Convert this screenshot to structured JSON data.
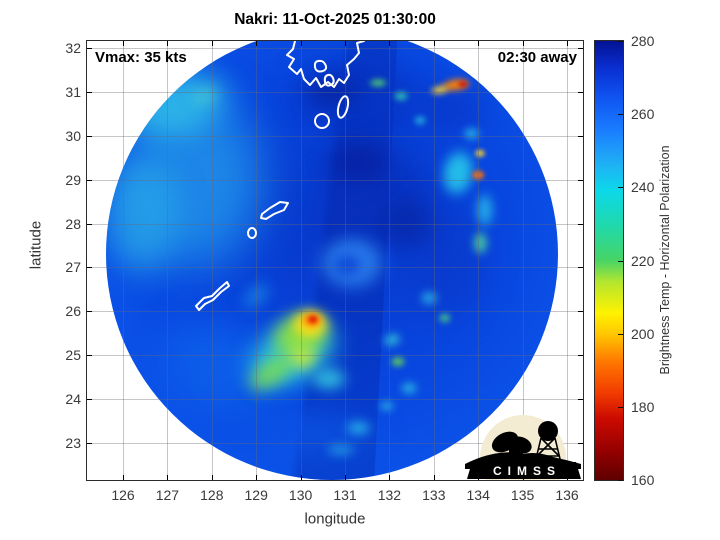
{
  "chart_data": {
    "type": "heatmap",
    "title": "Nakri: 11-Oct-2025 01:30:00",
    "xlabel": "longitude",
    "ylabel": "latitude",
    "xlim": [
      125.2,
      136.4
    ],
    "ylim": [
      22.1,
      32.2
    ],
    "xticks": [
      126,
      127,
      128,
      129,
      130,
      131,
      132,
      133,
      134,
      135,
      136
    ],
    "yticks": [
      23,
      24,
      25,
      26,
      27,
      28,
      29,
      30,
      31,
      32
    ],
    "grid": true,
    "annotations": [
      {
        "text": "Vmax: 35 kts",
        "position": "top-left"
      },
      {
        "text": "02:30 away",
        "position": "top-right"
      }
    ],
    "storm": {
      "name": "Nakri",
      "vmax_kts": 35,
      "time_away": "02:30"
    },
    "colorbar": {
      "label": "Brightness Temp - Horizontal Polarization",
      "min": 160,
      "max": 280,
      "ticks": [
        160,
        180,
        200,
        220,
        240,
        260,
        280
      ],
      "stops": [
        [
          0,
          "#5f0000"
        ],
        [
          0.06,
          "#900000"
        ],
        [
          0.14,
          "#cc0a00"
        ],
        [
          0.2,
          "#f23d00"
        ],
        [
          0.27,
          "#ff7800"
        ],
        [
          0.33,
          "#ffc400"
        ],
        [
          0.38,
          "#fff200"
        ],
        [
          0.45,
          "#b5e62e"
        ],
        [
          0.5,
          "#47d465"
        ],
        [
          0.58,
          "#1fd9ac"
        ],
        [
          0.66,
          "#0cd8ea"
        ],
        [
          0.72,
          "#1fb0f5"
        ],
        [
          0.8,
          "#1a7bff"
        ],
        [
          0.875,
          "#0f52f0"
        ],
        [
          0.94,
          "#0a2ed0"
        ],
        [
          1,
          "#041294"
        ]
      ]
    },
    "swath": {
      "center_lon": 130.7,
      "center_lat": 27.3,
      "radius_deg": 5.1,
      "base_color": "#0846df"
    },
    "features_format": [
      "name",
      "lon",
      "lat",
      "rx_deg",
      "ry_deg",
      "rot_deg",
      "color",
      "alpha",
      "blur_px"
    ],
    "features": [
      [
        "west-light",
        127.6,
        29.0,
        2.6,
        3.4,
        0,
        "#1f8ae8",
        0.95,
        18
      ],
      [
        "nw-cyan",
        127.2,
        30.7,
        1.9,
        1.2,
        -15,
        "#2fb9e8",
        0.9,
        12
      ],
      [
        "west-cyan",
        126.4,
        28.2,
        1.4,
        2.2,
        0,
        "#2aaae8",
        0.75,
        14
      ],
      [
        "sw-blue",
        128.2,
        24.7,
        2.3,
        1.7,
        20,
        "#0e60ea",
        0.85,
        16
      ],
      [
        "south-blue",
        130.2,
        23.2,
        2.4,
        0.9,
        0,
        "#0d55e6",
        0.7,
        14
      ],
      [
        "upper-dark",
        131.3,
        30.9,
        2.3,
        1.5,
        0,
        "#0733c2",
        0.8,
        14
      ],
      [
        "mid-dark",
        131.8,
        28.7,
        1.9,
        1.7,
        0,
        "#0830bd",
        0.75,
        14
      ],
      [
        "east-dark",
        133.3,
        27.2,
        1.5,
        2.3,
        0,
        "#0a38ca",
        0.65,
        14
      ],
      [
        "ne-dark",
        133.4,
        30.6,
        1.3,
        0.9,
        0,
        "#0a34c4",
        0.6,
        12
      ],
      [
        "navy-1",
        131.3,
        29.4,
        1.1,
        0.75,
        0,
        "#061d9c",
        0.7,
        10
      ],
      [
        "navy-2",
        132.4,
        28.0,
        0.95,
        0.95,
        0,
        "#07239e",
        0.6,
        10
      ],
      [
        "navy-3",
        130.7,
        31.0,
        1.0,
        0.55,
        0,
        "#07219a",
        0.65,
        9
      ],
      [
        "eye-swirl-light",
        131.15,
        27.1,
        1.15,
        0.95,
        0,
        "#2e86f2",
        0.85,
        7
      ],
      [
        "eye-swirl-core",
        131.05,
        27.05,
        0.5,
        0.4,
        0,
        "#0d47d6",
        0.9,
        5
      ],
      [
        "burst-cyan",
        129.8,
        25.0,
        1.7,
        1.05,
        -25,
        "#2fd0da",
        0.9,
        10
      ],
      [
        "burst-green",
        130.0,
        25.45,
        1.05,
        0.8,
        -20,
        "#90e23c",
        0.9,
        7
      ],
      [
        "burst-yellow",
        130.22,
        25.72,
        0.62,
        0.5,
        0,
        "#ffe018",
        0.95,
        5
      ],
      [
        "burst-orange",
        130.26,
        25.8,
        0.34,
        0.27,
        0,
        "#ff870a",
        1,
        3
      ],
      [
        "burst-red-core",
        130.27,
        25.82,
        0.17,
        0.13,
        0,
        "#de1b06",
        1,
        2
      ],
      [
        "tail-green-sw",
        129.35,
        24.62,
        0.95,
        0.45,
        -35,
        "#7cdc52",
        0.85,
        7
      ],
      [
        "tail-yellow-s",
        130.05,
        24.95,
        0.5,
        0.45,
        0,
        "#c8e838",
        0.8,
        6
      ],
      [
        "tail-cyan-s",
        130.65,
        24.45,
        0.6,
        0.4,
        0,
        "#38cfe2",
        0.8,
        6
      ],
      [
        "band-cyan-ne",
        133.55,
        29.15,
        0.55,
        0.8,
        10,
        "#27c8ea",
        0.9,
        5
      ],
      [
        "band-orange-ne",
        134.0,
        29.1,
        0.22,
        0.17,
        0,
        "#f06a10",
        1,
        2
      ],
      [
        "band-cyan-e",
        134.15,
        28.3,
        0.3,
        0.6,
        0,
        "#2cc4ea",
        0.8,
        5
      ],
      [
        "band-green-e",
        134.05,
        27.55,
        0.25,
        0.4,
        0,
        "#4fd89a",
        0.8,
        4
      ],
      [
        "band-cyan-n",
        133.85,
        30.05,
        0.28,
        0.2,
        0,
        "#2cc8ea",
        0.85,
        4
      ],
      [
        "band-yellow-n",
        134.05,
        29.6,
        0.18,
        0.13,
        0,
        "#ffd428",
        0.9,
        2
      ],
      [
        "tr-orange",
        133.5,
        31.15,
        0.5,
        0.22,
        -8,
        "#f07c10",
        1,
        3
      ],
      [
        "tr-red",
        133.65,
        31.18,
        0.17,
        0.11,
        0,
        "#cc1708",
        1,
        2
      ],
      [
        "tr-yellow",
        133.15,
        31.05,
        0.32,
        0.15,
        -8,
        "#ffd428",
        0.9,
        3
      ],
      [
        "top-green",
        131.75,
        31.2,
        0.3,
        0.14,
        0,
        "#57da6a",
        0.85,
        3
      ],
      [
        "top-cyan-1",
        132.25,
        30.9,
        0.25,
        0.17,
        0,
        "#35d0b2",
        0.8,
        3
      ],
      [
        "top-cyan-2",
        132.7,
        30.35,
        0.2,
        0.15,
        0,
        "#2fc8e0",
        0.75,
        3
      ],
      [
        "se-cyan",
        132.9,
        26.3,
        0.3,
        0.25,
        0,
        "#2fc0e8",
        0.7,
        4
      ],
      [
        "se-green",
        133.25,
        25.85,
        0.22,
        0.17,
        0,
        "#50d878",
        0.75,
        3
      ],
      [
        "s-band-cyan-1",
        132.05,
        25.35,
        0.3,
        0.22,
        -20,
        "#35ccda",
        0.8,
        4
      ],
      [
        "s-band-green",
        132.2,
        24.85,
        0.25,
        0.19,
        0,
        "#6ada4e",
        0.8,
        3
      ],
      [
        "s-band-cyan-2",
        132.45,
        24.25,
        0.28,
        0.2,
        0,
        "#30c8e2",
        0.8,
        4
      ],
      [
        "s-band-cyan-3",
        131.95,
        23.85,
        0.25,
        0.17,
        0,
        "#38cce4",
        0.75,
        4
      ],
      [
        "s-low-cyan",
        131.3,
        23.35,
        0.42,
        0.24,
        0,
        "#2fc4ec",
        0.8,
        5
      ],
      [
        "bottom-cyan",
        130.9,
        22.85,
        0.5,
        0.2,
        0,
        "#30c8e8",
        0.6,
        5
      ],
      [
        "w-streak",
        129.0,
        26.35,
        0.55,
        0.3,
        -40,
        "#1f9ae8",
        0.7,
        7
      ],
      [
        "nw-green-hint",
        127.85,
        30.9,
        0.5,
        0.28,
        -20,
        "#4fd2c8",
        0.55,
        6
      ]
    ]
  },
  "logo": {
    "text": "CIMSS"
  }
}
